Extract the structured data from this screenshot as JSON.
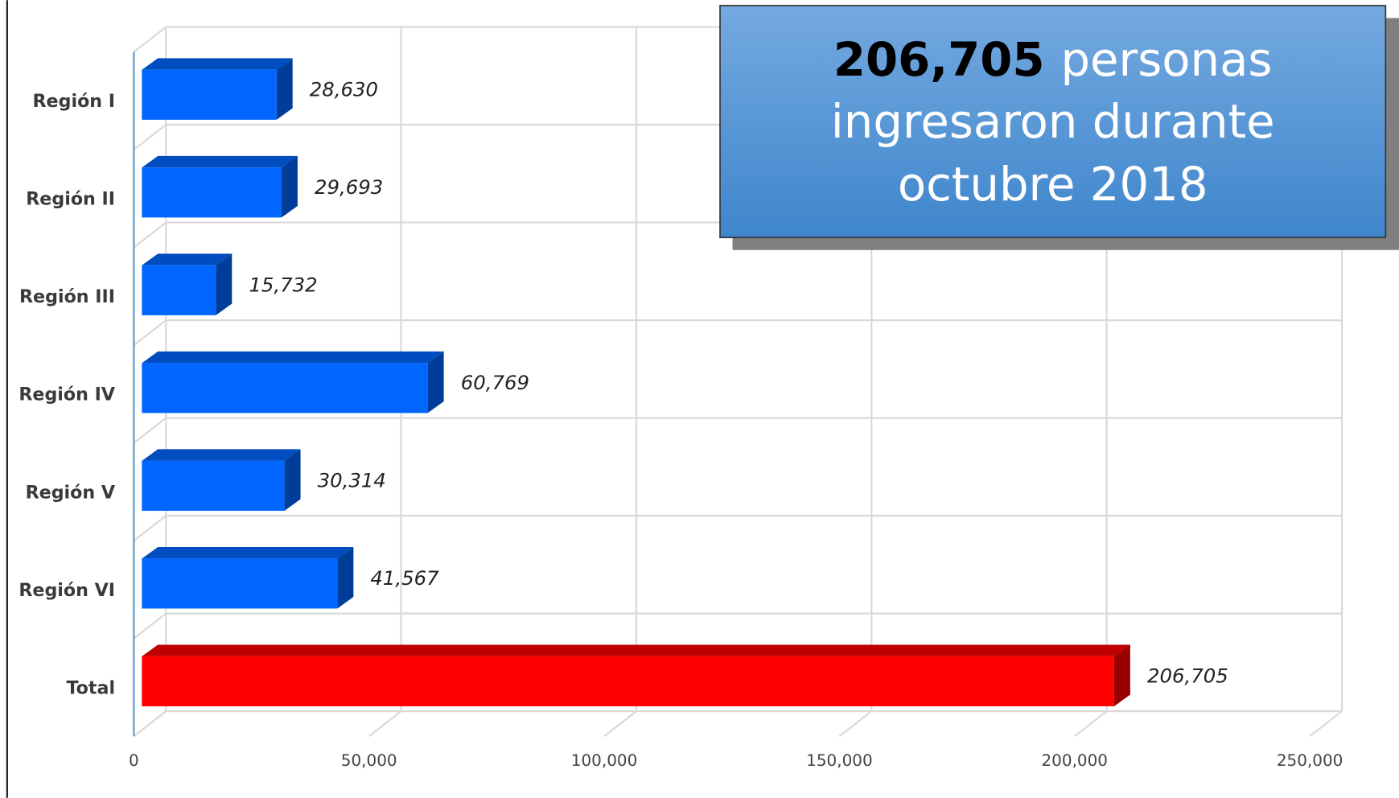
{
  "chart_data": {
    "type": "bar",
    "orientation": "horizontal",
    "three_d": true,
    "categories": [
      "Región I",
      "Región II",
      "Región III",
      "Región IV",
      "Región V",
      "Región VI",
      "Total"
    ],
    "values": [
      28630,
      29693,
      15732,
      60769,
      30314,
      41567,
      206705
    ],
    "value_labels": [
      "28,630",
      "29,693",
      "15,732",
      "60,769",
      "30,314",
      "41,567",
      "206,705"
    ],
    "colors": [
      "#0066ff",
      "#0066ff",
      "#0066ff",
      "#0066ff",
      "#0066ff",
      "#0066ff",
      "#ff0000"
    ],
    "xlim": [
      0,
      250000
    ],
    "xticks": [
      0,
      {
        "value": 50000,
        "label": "50,000"
      },
      {
        "value": 100000,
        "label": "100,000"
      },
      {
        "value": 150000,
        "label": "150,000"
      },
      {
        "value": 200000,
        "label": "200,000"
      },
      {
        "value": 250000,
        "label": "250,000"
      }
    ],
    "grid": true,
    "annotation": {
      "highlight": "206,705",
      "lines": [
        "personas",
        "ingresaron durante",
        "octubre 2018"
      ]
    }
  }
}
